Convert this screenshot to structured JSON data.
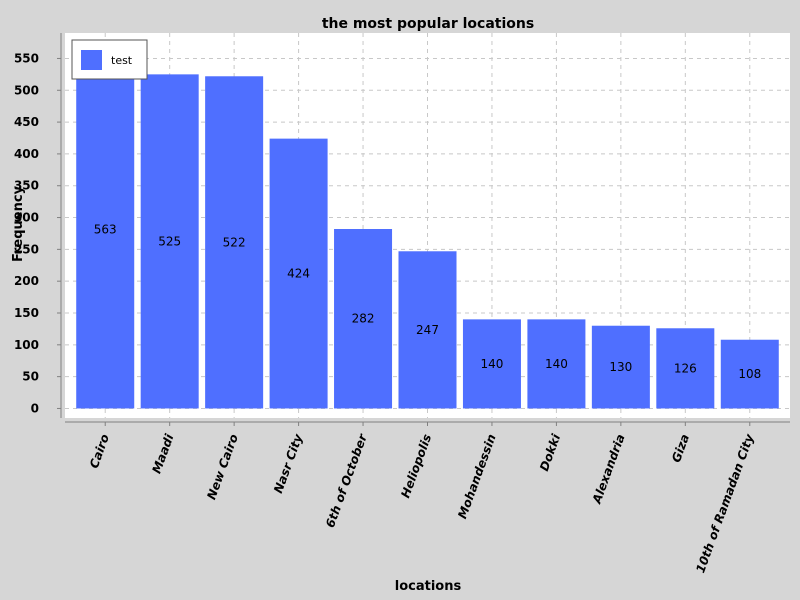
{
  "chart_data": {
    "type": "bar",
    "title": "the most popular locations",
    "xlabel": "locations",
    "ylabel": "Frequency",
    "categories": [
      "Cairo",
      "Maadi",
      "New Cairo",
      "Nasr City",
      "6th of October",
      "Heliopolis",
      "Mohandessin",
      "Dokki",
      "Alexandria",
      "Giza",
      "10th of Ramadan City"
    ],
    "series": [
      {
        "name": "test",
        "values": [
          563,
          525,
          522,
          424,
          282,
          247,
          140,
          140,
          130,
          126,
          108
        ],
        "color": "#4f6fff"
      }
    ],
    "yticks": [
      0,
      50,
      100,
      150,
      200,
      250,
      300,
      350,
      400,
      450,
      500,
      550
    ],
    "ylim": [
      -15,
      590
    ],
    "grid": true,
    "legend_position": "top-left",
    "background": "#ffffff",
    "page_background": "#d6d6d6"
  }
}
